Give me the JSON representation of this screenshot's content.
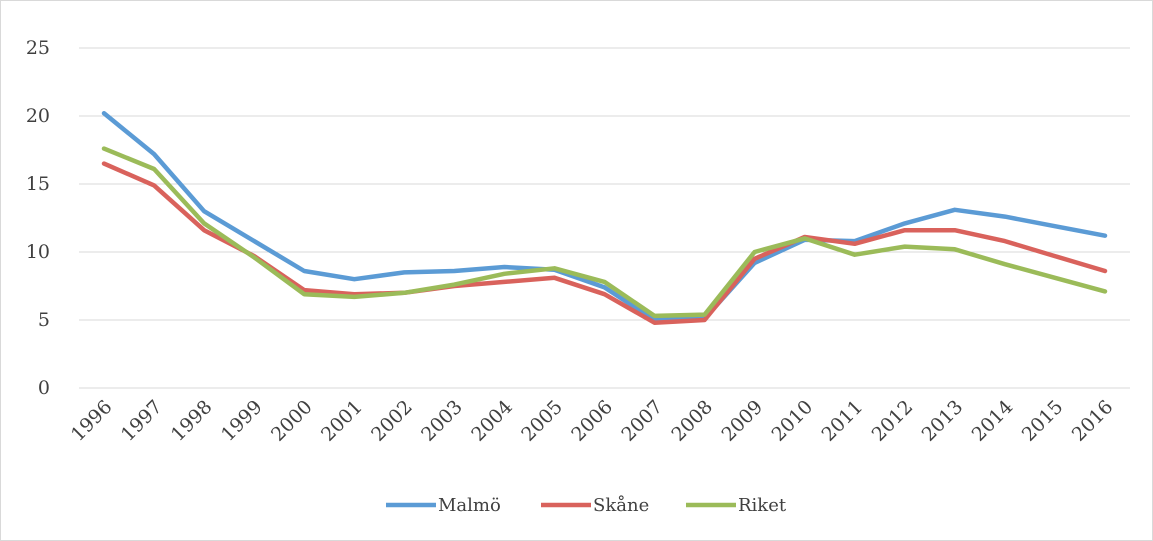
{
  "chart_data": {
    "type": "line",
    "title": "",
    "xlabel": "",
    "ylabel": "",
    "x": [
      "1996",
      "1997",
      "1998",
      "1999",
      "2000",
      "2001",
      "2002",
      "2003",
      "2004",
      "2005",
      "2006",
      "2007",
      "2008",
      "2009",
      "2010",
      "2011",
      "2012",
      "2013",
      "2014",
      "2015",
      "2016"
    ],
    "ylim": [
      0,
      25
    ],
    "yticks": [
      "0",
      "5",
      "10",
      "15",
      "20",
      "25"
    ],
    "grid": "horizontal",
    "legend_position": "bottom",
    "series": [
      {
        "name": "Malmö",
        "color": "#5b9bd5",
        "values": [
          20.2,
          17.2,
          13.0,
          10.8,
          8.6,
          8.0,
          8.5,
          8.6,
          8.9,
          8.7,
          7.4,
          5.0,
          5.1,
          9.2,
          10.9,
          10.8,
          12.1,
          13.1,
          12.6,
          11.9,
          11.2
        ]
      },
      {
        "name": "Skåne",
        "color": "#d9625c",
        "values": [
          16.5,
          14.9,
          11.6,
          9.7,
          7.2,
          6.9,
          7.0,
          7.5,
          7.8,
          8.1,
          6.9,
          4.8,
          5.0,
          9.5,
          11.1,
          10.6,
          11.6,
          11.6,
          10.8,
          9.7,
          8.6
        ]
      },
      {
        "name": "Riket",
        "color": "#9bbb59",
        "values": [
          17.6,
          16.1,
          12.1,
          9.6,
          6.9,
          6.7,
          7.0,
          7.6,
          8.4,
          8.8,
          7.8,
          5.3,
          5.4,
          10.0,
          11.0,
          9.8,
          10.4,
          10.2,
          9.1,
          8.1,
          7.1
        ]
      }
    ]
  }
}
